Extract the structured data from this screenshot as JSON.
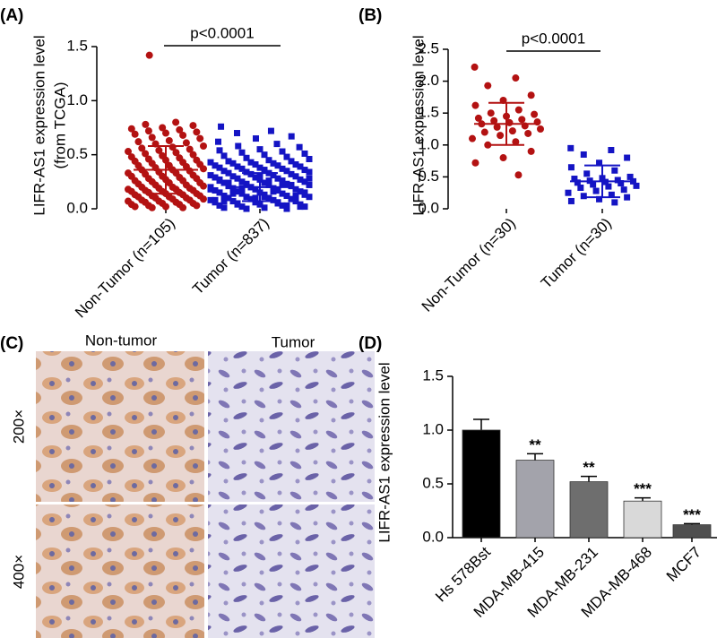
{
  "chart_data": [
    {
      "type": "strip",
      "label": "(A)",
      "ylabel_lines": [
        "LIFR-AS1 expression level",
        "(from TCGA)"
      ],
      "significance": "p<0.0001",
      "ylim": [
        0,
        1.5
      ],
      "yticks": [
        {
          "value": 0,
          "label": "0.0"
        },
        {
          "value": 0.5,
          "label": "0.5"
        },
        {
          "value": 1,
          "label": "1.0"
        },
        {
          "value": 1.5,
          "label": "1.5"
        }
      ],
      "groups": [
        {
          "name": "Non-Tumor (n=105)",
          "color": "#b31212",
          "marker": "circle",
          "mean": 0.36,
          "sd": 0.22,
          "values": [
            1.42,
            0.8,
            0.78,
            0.77,
            0.75,
            0.74,
            0.73,
            0.72,
            0.71,
            0.7,
            0.69,
            0.68,
            0.66,
            0.65,
            0.63,
            0.62,
            0.61,
            0.6,
            0.58,
            0.57,
            0.56,
            0.55,
            0.54,
            0.53,
            0.52,
            0.51,
            0.5,
            0.49,
            0.48,
            0.47,
            0.46,
            0.45,
            0.45,
            0.44,
            0.43,
            0.42,
            0.41,
            0.4,
            0.4,
            0.39,
            0.38,
            0.37,
            0.36,
            0.36,
            0.35,
            0.34,
            0.33,
            0.33,
            0.32,
            0.31,
            0.3,
            0.3,
            0.29,
            0.28,
            0.28,
            0.27,
            0.26,
            0.26,
            0.25,
            0.24,
            0.24,
            0.23,
            0.22,
            0.22,
            0.21,
            0.2,
            0.2,
            0.19,
            0.19,
            0.18,
            0.18,
            0.17,
            0.17,
            0.16,
            0.16,
            0.15,
            0.15,
            0.14,
            0.14,
            0.13,
            0.13,
            0.12,
            0.12,
            0.11,
            0.11,
            0.1,
            0.1,
            0.09,
            0.09,
            0.08,
            0.08,
            0.07,
            0.07,
            0.06,
            0.06,
            0.05,
            0.05,
            0.04,
            0.04,
            0.03,
            0.03,
            0.02,
            0.02,
            0.01,
            0.01
          ]
        },
        {
          "name": "Tumor (n=837)",
          "color": "#1414c4",
          "marker": "square",
          "mean": 0.2,
          "sd": 0.13,
          "values": [
            0.76,
            0.72,
            0.7,
            0.67,
            0.65,
            0.62,
            0.6,
            0.58,
            0.57,
            0.55,
            0.54,
            0.53,
            0.52,
            0.51,
            0.5,
            0.49,
            0.48,
            0.47,
            0.46,
            0.45,
            0.44,
            0.44,
            0.43,
            0.43,
            0.42,
            0.42,
            0.41,
            0.41,
            0.4,
            0.4,
            0.39,
            0.39,
            0.38,
            0.38,
            0.37,
            0.37,
            0.36,
            0.36,
            0.35,
            0.35,
            0.34,
            0.34,
            0.33,
            0.33,
            0.32,
            0.32,
            0.31,
            0.31,
            0.3,
            0.3,
            0.29,
            0.29,
            0.28,
            0.28,
            0.27,
            0.27,
            0.26,
            0.26,
            0.25,
            0.25,
            0.24,
            0.24,
            0.23,
            0.23,
            0.22,
            0.22,
            0.21,
            0.21,
            0.2,
            0.2,
            0.19,
            0.19,
            0.18,
            0.18,
            0.17,
            0.17,
            0.16,
            0.16,
            0.15,
            0.15,
            0.14,
            0.14,
            0.13,
            0.13,
            0.12,
            0.12,
            0.11,
            0.11,
            0.1,
            0.1,
            0.09,
            0.09,
            0.08,
            0.08,
            0.07,
            0.07,
            0.06,
            0.06,
            0.05,
            0.05,
            0.04,
            0.04,
            0.03,
            0.03,
            0.02,
            0.02,
            0.01,
            0.01,
            0,
            0,
            0.28,
            0.26,
            0.24,
            0.22,
            0.2,
            0.18,
            0.16,
            0.14,
            0.12,
            0.1,
            0.08,
            0.06,
            0.04,
            0.02,
            0.3,
            0.27,
            0.23,
            0.19,
            0.15,
            0.11,
            0.07,
            0.03
          ]
        }
      ]
    },
    {
      "type": "strip",
      "label": "(B)",
      "ylabel_lines": [
        "LIFR-AS1 expression level"
      ],
      "significance": "p<0.0001",
      "ylim": [
        0,
        2.5
      ],
      "yticks": [
        {
          "value": 0,
          "label": "0.0"
        },
        {
          "value": 0.5,
          "label": "0.5"
        },
        {
          "value": 1,
          "label": "1.0"
        },
        {
          "value": 1.5,
          "label": "1.5"
        },
        {
          "value": 2,
          "label": "2.0"
        },
        {
          "value": 2.5,
          "label": "2.5"
        }
      ],
      "groups": [
        {
          "name": "Non-Tumor (n=30)",
          "color": "#b31212",
          "marker": "circle",
          "mean": 1.33,
          "sd": 0.33,
          "values": [
            2.22,
            2.05,
            1.93,
            1.78,
            1.7,
            1.62,
            1.55,
            1.5,
            1.48,
            1.45,
            1.42,
            1.4,
            1.38,
            1.36,
            1.35,
            1.33,
            1.3,
            1.28,
            1.25,
            1.22,
            1.2,
            1.18,
            1.15,
            1.1,
            1.05,
            1,
            0.9,
            0.8,
            0.72,
            0.53
          ]
        },
        {
          "name": "Tumor (n=30)",
          "color": "#1414c4",
          "marker": "square",
          "mean": 0.43,
          "sd": 0.25,
          "values": [
            0.95,
            0.92,
            0.85,
            0.8,
            0.72,
            0.65,
            0.6,
            0.55,
            0.5,
            0.48,
            0.47,
            0.45,
            0.44,
            0.43,
            0.42,
            0.41,
            0.4,
            0.38,
            0.36,
            0.35,
            0.33,
            0.3,
            0.28,
            0.25,
            0.22,
            0.2,
            0.18,
            0.15,
            0.12,
            0.1
          ]
        }
      ]
    },
    {
      "type": "bar",
      "label": "(D)",
      "ylabel_lines": [
        "LIFR-AS1 expression level"
      ],
      "ylim": [
        0,
        1.5
      ],
      "yticks": [
        {
          "value": 0,
          "label": "0.0"
        },
        {
          "value": 0.5,
          "label": "0.5"
        },
        {
          "value": 1,
          "label": "1.0"
        },
        {
          "value": 1.5,
          "label": "1.5"
        }
      ],
      "categories": [
        "Hs 578Bst",
        "MDA-MB-415",
        "MDA-MB-231",
        "MDA-MB-468",
        "MCF7"
      ],
      "values": [
        1.0,
        0.72,
        0.52,
        0.34,
        0.12
      ],
      "errors": [
        0.1,
        0.06,
        0.05,
        0.03,
        0.01
      ],
      "colors": [
        "#000000",
        "#a3a3ab",
        "#6e6e6e",
        "#d9d9d9",
        "#4f4f4f"
      ],
      "annotations": [
        null,
        "**",
        "**",
        "***",
        "***"
      ]
    }
  ],
  "panel_c": {
    "label": "(C)",
    "column_labels": [
      "Non-tumor",
      "Tumor"
    ],
    "row_labels": [
      "200×",
      "400×"
    ]
  }
}
